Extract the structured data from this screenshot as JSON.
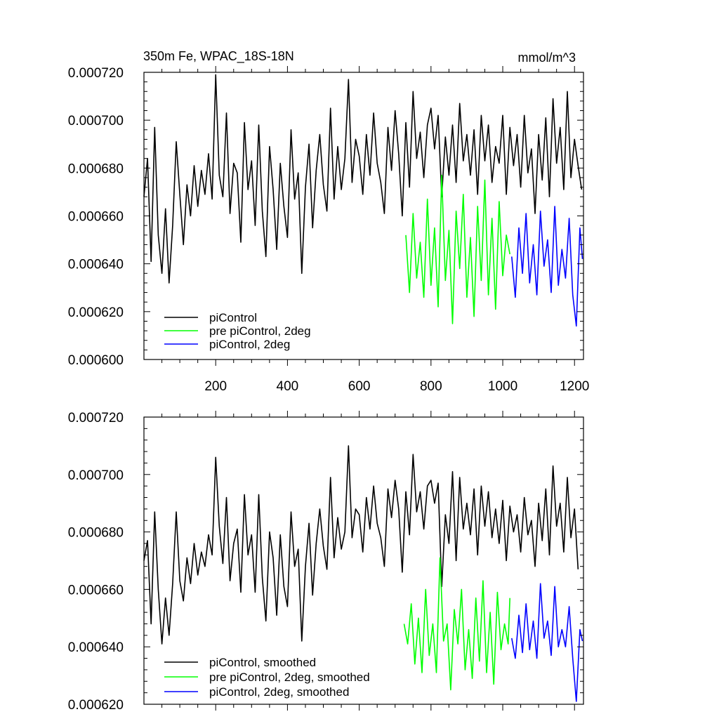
{
  "chart_data": [
    {
      "type": "line",
      "title": "350m Fe, WPAC_18S-18N",
      "units": "mmol/m^3",
      "xlabel": "",
      "ylabel": "",
      "xlim": [
        0,
        1225
      ],
      "ylim": [
        0.0006,
        0.00072
      ],
      "x_tick_values": [
        200,
        400,
        600,
        800,
        1000,
        1200
      ],
      "x_tick_labels": [
        "200",
        "400",
        "600",
        "800",
        "1000",
        "1200"
      ],
      "y_tick_values": [
        0.0006,
        0.00062,
        0.00064,
        0.00066,
        0.00068,
        0.0007,
        0.00072
      ],
      "y_tick_labels": [
        "0.000600",
        "0.000620",
        "0.000640",
        "0.000660",
        "0.000680",
        "0.000700",
        "0.000720"
      ],
      "legend_position": "bottom-left",
      "series": [
        {
          "name": "piControl",
          "color": "#000000",
          "x": [
            0,
            10,
            20,
            30,
            40,
            50,
            60,
            70,
            80,
            90,
            100,
            110,
            120,
            130,
            140,
            150,
            160,
            170,
            180,
            190,
            200,
            210,
            220,
            230,
            240,
            250,
            260,
            270,
            280,
            290,
            300,
            310,
            320,
            330,
            340,
            350,
            360,
            370,
            380,
            390,
            400,
            410,
            420,
            430,
            440,
            450,
            460,
            470,
            480,
            490,
            500,
            510,
            520,
            530,
            540,
            550,
            560,
            570,
            580,
            590,
            600,
            610,
            620,
            630,
            640,
            650,
            660,
            670,
            680,
            690,
            700,
            710,
            720,
            730,
            740,
            750,
            760,
            770,
            780,
            790,
            800,
            810,
            820,
            830,
            840,
            850,
            860,
            870,
            880,
            890,
            900,
            910,
            920,
            930,
            940,
            950,
            960,
            970,
            980,
            990,
            1000,
            1010,
            1020,
            1030,
            1040,
            1050,
            1060,
            1070,
            1080,
            1090,
            1100,
            1110,
            1120,
            1130,
            1140,
            1150,
            1160,
            1170,
            1180,
            1190,
            1200,
            1210,
            1220
          ],
          "values": [
            0.000668,
            0.000684,
            0.000641,
            0.000697,
            0.000652,
            0.000636,
            0.000663,
            0.000632,
            0.000656,
            0.000691,
            0.000669,
            0.000648,
            0.000673,
            0.00066,
            0.000681,
            0.000664,
            0.000679,
            0.000669,
            0.000686,
            0.000667,
            0.000719,
            0.000677,
            0.000668,
            0.000703,
            0.000661,
            0.000682,
            0.000678,
            0.000649,
            0.000699,
            0.000671,
            0.000683,
            0.000656,
            0.000698,
            0.000662,
            0.000643,
            0.000689,
            0.000671,
            0.000646,
            0.000682,
            0.000664,
            0.000651,
            0.000696,
            0.000667,
            0.000678,
            0.000636,
            0.000672,
            0.00069,
            0.000655,
            0.000679,
            0.000694,
            0.000673,
            0.000662,
            0.000705,
            0.000667,
            0.000689,
            0.000671,
            0.000684,
            0.000717,
            0.000674,
            0.000692,
            0.000685,
            0.000669,
            0.000694,
            0.000677,
            0.000703,
            0.000682,
            0.000674,
            0.000661,
            0.000697,
            0.000679,
            0.000704,
            0.000686,
            0.00066,
            0.000699,
            0.000672,
            0.000712,
            0.000684,
            0.000695,
            0.000676,
            0.000698,
            0.000705,
            0.000688,
            0.000702,
            0.000668,
            0.000693,
            0.000677,
            0.000698,
            0.000674,
            0.000707,
            0.000683,
            0.000694,
            0.000677,
            0.000696,
            0.000669,
            0.000702,
            0.000683,
            0.000698,
            0.000674,
            0.000689,
            0.000682,
            0.000702,
            0.000669,
            0.000697,
            0.000681,
            0.000694,
            0.000672,
            0.000702,
            0.000678,
            0.000688,
            0.000661,
            0.000694,
            0.000675,
            0.000701,
            0.000668,
            0.000709,
            0.000682,
            0.000697,
            0.000671,
            0.000712,
            0.000676,
            0.000692,
            0.000681,
            0.000671
          ]
        },
        {
          "name": "pre piControl, 2deg",
          "color": "#00ff00",
          "x": [
            730,
            740,
            750,
            760,
            770,
            780,
            790,
            800,
            810,
            820,
            830,
            840,
            850,
            860,
            870,
            880,
            890,
            900,
            910,
            920,
            930,
            940,
            950,
            960,
            970,
            980,
            990,
            1000,
            1010,
            1020
          ],
          "values": [
            0.000652,
            0.000628,
            0.000661,
            0.000634,
            0.000649,
            0.000626,
            0.000667,
            0.000631,
            0.000655,
            0.000622,
            0.000677,
            0.000633,
            0.000654,
            0.000615,
            0.000662,
            0.000638,
            0.000669,
            0.000626,
            0.000651,
            0.000618,
            0.000664,
            0.000633,
            0.000675,
            0.000627,
            0.000659,
            0.000621,
            0.000666,
            0.000635,
            0.000652,
            0.000644
          ]
        },
        {
          "name": "piControl, 2deg",
          "color": "#0000ff",
          "x": [
            1025,
            1035,
            1045,
            1055,
            1065,
            1075,
            1085,
            1095,
            1105,
            1115,
            1125,
            1135,
            1145,
            1155,
            1165,
            1175,
            1185,
            1195,
            1205,
            1215,
            1222
          ],
          "values": [
            0.000643,
            0.000626,
            0.000655,
            0.000636,
            0.000661,
            0.000632,
            0.000648,
            0.000627,
            0.000662,
            0.000639,
            0.00065,
            0.000628,
            0.000664,
            0.000631,
            0.000646,
            0.000634,
            0.000659,
            0.000627,
            0.000614,
            0.000655,
            0.000642
          ]
        }
      ]
    },
    {
      "type": "line",
      "title": "",
      "xlabel": "",
      "ylabel": "",
      "xlim": [
        0,
        1225
      ],
      "ylim": [
        0.00062,
        0.00072
      ],
      "y_tick_values": [
        0.00062,
        0.00064,
        0.00066,
        0.00068,
        0.0007,
        0.00072
      ],
      "y_tick_labels": [
        "0.000620",
        "0.000640",
        "0.000660",
        "0.000680",
        "0.000700",
        "0.000720"
      ],
      "legend_position": "bottom-left",
      "series": [
        {
          "name": "piControl, smoothed",
          "color": "#000000",
          "x": [
            0,
            10,
            20,
            30,
            40,
            50,
            60,
            70,
            80,
            90,
            100,
            110,
            120,
            130,
            140,
            150,
            160,
            170,
            180,
            190,
            200,
            210,
            220,
            230,
            240,
            250,
            260,
            270,
            280,
            290,
            300,
            310,
            320,
            330,
            340,
            350,
            360,
            370,
            380,
            390,
            400,
            410,
            420,
            430,
            440,
            450,
            460,
            470,
            480,
            490,
            500,
            510,
            520,
            530,
            540,
            550,
            560,
            570,
            580,
            590,
            600,
            610,
            620,
            630,
            640,
            650,
            660,
            670,
            680,
            690,
            700,
            710,
            720,
            730,
            740,
            750,
            760,
            770,
            780,
            790,
            800,
            810,
            820,
            830,
            840,
            850,
            860,
            870,
            880,
            890,
            900,
            910,
            920,
            930,
            940,
            950,
            960,
            970,
            980,
            990,
            1000,
            1010,
            1020,
            1030,
            1040,
            1050,
            1060,
            1070,
            1080,
            1090,
            1100,
            1110,
            1120,
            1130,
            1140,
            1150,
            1160,
            1170,
            1180,
            1190,
            1200,
            1210
          ],
          "values": [
            0.00067,
            0.000677,
            0.000648,
            0.000687,
            0.00066,
            0.000641,
            0.000657,
            0.000644,
            0.000662,
            0.000687,
            0.000663,
            0.000656,
            0.000671,
            0.000662,
            0.000676,
            0.000665,
            0.000673,
            0.000668,
            0.000679,
            0.000672,
            0.000706,
            0.000682,
            0.000669,
            0.000692,
            0.000663,
            0.000676,
            0.000681,
            0.000659,
            0.000693,
            0.000672,
            0.000679,
            0.000659,
            0.000693,
            0.000664,
            0.000649,
            0.00068,
            0.000671,
            0.000651,
            0.000679,
            0.000661,
            0.000654,
            0.000687,
            0.000668,
            0.000674,
            0.000642,
            0.000668,
            0.000683,
            0.000658,
            0.000676,
            0.000688,
            0.000675,
            0.000667,
            0.000699,
            0.000671,
            0.000685,
            0.000674,
            0.00068,
            0.00071,
            0.000678,
            0.000688,
            0.000686,
            0.000673,
            0.000692,
            0.000681,
            0.000696,
            0.000683,
            0.000678,
            0.000668,
            0.000695,
            0.000685,
            0.000698,
            0.000688,
            0.000666,
            0.000694,
            0.000679,
            0.000707,
            0.000687,
            0.000694,
            0.000681,
            0.000696,
            0.000698,
            0.00069,
            0.000697,
            0.000661,
            0.000686,
            0.000676,
            0.000701,
            0.00067,
            0.000699,
            0.000681,
            0.00069,
            0.000679,
            0.000695,
            0.000672,
            0.000696,
            0.000682,
            0.000694,
            0.000678,
            0.000688,
            0.000676,
            0.000691,
            0.00067,
            0.000689,
            0.00068,
            0.000686,
            0.000673,
            0.000692,
            0.000679,
            0.000684,
            0.000668,
            0.00069,
            0.000677,
            0.000695,
            0.000672,
            0.000703,
            0.000682,
            0.00069,
            0.000673,
            0.000699,
            0.000678,
            0.000688,
            0.000667
          ]
        },
        {
          "name": "pre piControl, 2deg, smoothed",
          "color": "#00ff00",
          "x": [
            725,
            735,
            745,
            755,
            765,
            775,
            785,
            795,
            805,
            815,
            825,
            835,
            845,
            855,
            865,
            875,
            885,
            895,
            905,
            915,
            925,
            935,
            945,
            955,
            965,
            975,
            985,
            995,
            1005,
            1015,
            1020
          ],
          "values": [
            0.000648,
            0.000641,
            0.000655,
            0.000634,
            0.00065,
            0.000631,
            0.00066,
            0.000637,
            0.000648,
            0.000631,
            0.000671,
            0.000642,
            0.000648,
            0.000625,
            0.000653,
            0.000641,
            0.00066,
            0.000632,
            0.000646,
            0.000629,
            0.000657,
            0.000635,
            0.000663,
            0.000631,
            0.000652,
            0.000627,
            0.000659,
            0.000639,
            0.000648,
            0.000641,
            0.000657
          ]
        },
        {
          "name": "piControl, 2deg, smoothed",
          "color": "#0000ff",
          "x": [
            1025,
            1035,
            1045,
            1055,
            1065,
            1075,
            1085,
            1095,
            1105,
            1115,
            1125,
            1135,
            1145,
            1155,
            1165,
            1175,
            1185,
            1195,
            1205,
            1215,
            1222
          ],
          "values": [
            0.000643,
            0.000636,
            0.000651,
            0.000638,
            0.000655,
            0.000639,
            0.000649,
            0.000636,
            0.000662,
            0.000643,
            0.000649,
            0.000637,
            0.000661,
            0.00064,
            0.000646,
            0.00064,
            0.000654,
            0.000636,
            0.000621,
            0.000646,
            0.000642
          ]
        }
      ]
    }
  ]
}
